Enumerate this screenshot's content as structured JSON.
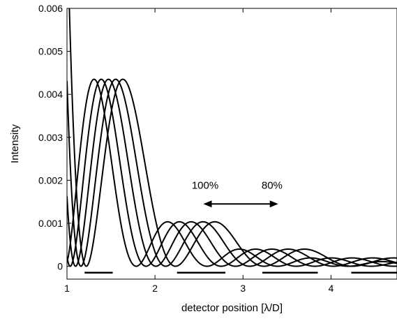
{
  "chart_data": {
    "type": "line",
    "title": "",
    "xlabel": "detector position [λ/D]",
    "ylabel": "Intensity",
    "xlim": [
      1,
      4.75
    ],
    "ylim": [
      -0.0003,
      0.006
    ],
    "xticks": [
      1,
      2,
      3,
      4
    ],
    "xtick_labels": [
      "1",
      "2",
      "3",
      "4"
    ],
    "yticks": [
      0,
      0.001,
      0.002,
      0.003,
      0.004,
      0.005,
      0.006
    ],
    "ytick_labels": [
      "0",
      "0.001",
      "0.002",
      "0.003",
      "0.004",
      "0.005",
      "0.006"
    ],
    "grid": false,
    "legend": null,
    "series_scale_factors": [
      1.0,
      0.95,
      0.9,
      0.85,
      0.8
    ],
    "series": [
      {
        "values_note": "",
        "scale": 1.0,
        "color": "#000000"
      },
      {
        "values_note": "",
        "scale": 0.95,
        "color": "#000000"
      },
      {
        "values_note": "",
        "scale": 0.9,
        "color": "#000000"
      },
      {
        "values_note": "",
        "scale": 0.85,
        "color": "#000000"
      },
      {
        "values_note": "",
        "scale": 0.8,
        "color": "#000000"
      }
    ],
    "ring_peaks": [
      {
        "ring": 1,
        "peak_intensity": 0.00435,
        "peak_position_x_scale1": 1.635
      },
      {
        "ring": 2,
        "peak_intensity": 0.00103,
        "peak_position_x_scale1": 2.68
      },
      {
        "ring": 3,
        "peak_intensity": 0.00038,
        "peak_position_x_scale1": 3.7
      }
    ],
    "annotations": [
      {
        "text": "100%",
        "x": 2.57,
        "y": 0.0018
      },
      {
        "text": "80%",
        "x": 3.33,
        "y": 0.0018
      },
      {
        "type": "double-arrow",
        "x_from": 2.55,
        "x_to": 3.4,
        "y": 0.00145
      }
    ],
    "detector_bars": [
      {
        "x_from": 1.2,
        "x_to": 1.52
      },
      {
        "x_from": 2.25,
        "x_to": 2.8
      },
      {
        "x_from": 3.22,
        "x_to": 3.85
      },
      {
        "x_from": 4.23,
        "x_to": 4.75
      }
    ],
    "bar_y": -0.00015
  }
}
